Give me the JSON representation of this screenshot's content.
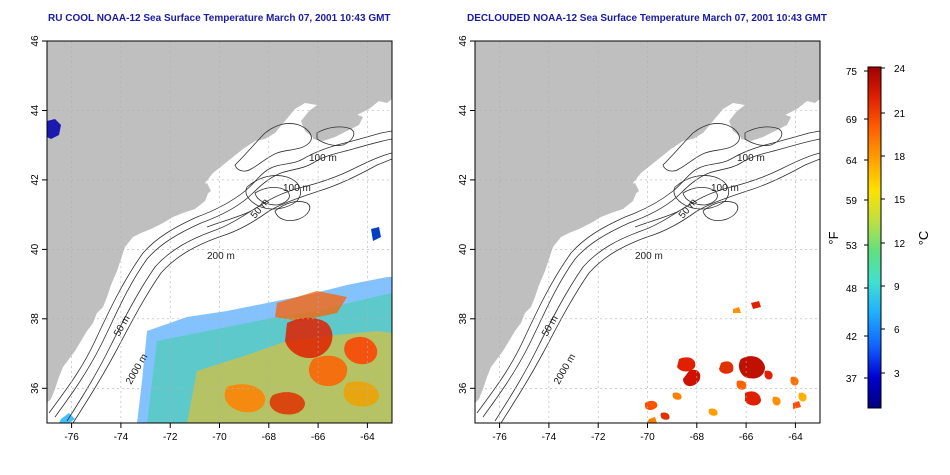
{
  "left_map": {
    "title": "RU COOL NOAA-12 Sea Surface Temperature March 07, 2001 10:43 GMT",
    "lat_ticks": [
      "36",
      "38",
      "40",
      "42",
      "44",
      "46"
    ],
    "lon_ticks": [
      "-76",
      "-74",
      "-72",
      "-70",
      "-68",
      "-66",
      "-64"
    ],
    "contour_labels": [
      "100 m",
      "100 m",
      "50 m",
      "200 m",
      "50 m",
      "2000 m"
    ]
  },
  "right_map": {
    "title": "DECLOUDED NOAA-12 Sea Surface Temperature March 07, 2001 10:43 GMT",
    "lat_ticks": [
      "36",
      "38",
      "40",
      "42",
      "44",
      "46"
    ],
    "lon_ticks": [
      "-76",
      "-74",
      "-72",
      "-70",
      "-68",
      "-66",
      "-64"
    ],
    "contour_labels": [
      "100 m",
      "100 m",
      "50 m",
      "200 m",
      "50 m",
      "2000 m"
    ]
  },
  "colorbar": {
    "fahrenheit_label": "°F",
    "celsius_label": "°C",
    "fahrenheit_ticks": [
      "75",
      "69",
      "64",
      "59",
      "53",
      "48",
      "42",
      "37"
    ],
    "celsius_ticks": [
      "24",
      "21",
      "18",
      "15",
      "12",
      "9",
      "6",
      "3"
    ],
    "colors": [
      "#000080",
      "#0000d0",
      "#1060ff",
      "#20b0ff",
      "#40e0d0",
      "#60e080",
      "#c0e040",
      "#ffe000",
      "#ffa000",
      "#ff6000",
      "#e02000",
      "#a00000"
    ]
  },
  "colors": {
    "land": "#bfbfbf",
    "ocean": "#ffffff",
    "contour": "#303030",
    "grid": "#b0b0b0",
    "title": "#1a1aa6"
  }
}
